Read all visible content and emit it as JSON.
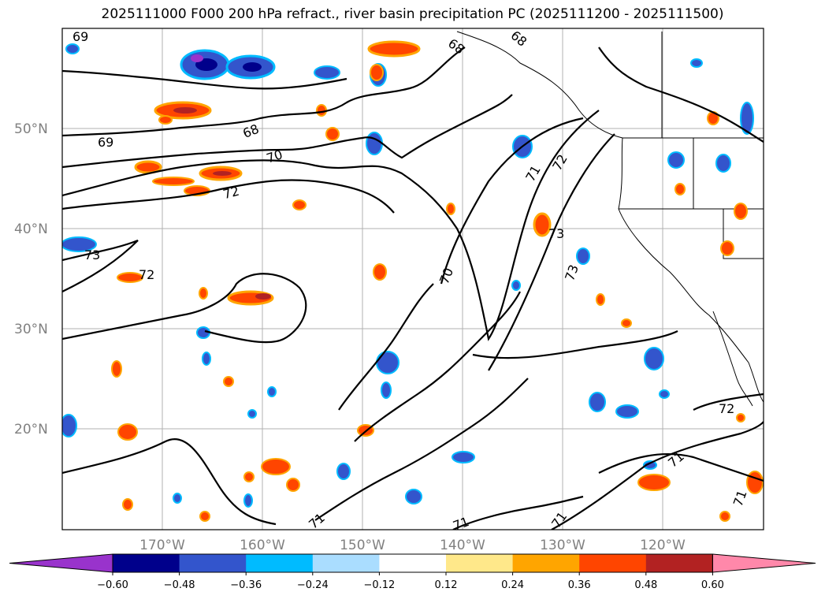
{
  "title": "2025111000 F000 200 hPa refract., river basin precipitation PC (2025111200 - 2025111500)",
  "map": {
    "lat_labels": [
      "50°N",
      "40°N",
      "30°N",
      "20°N"
    ],
    "lon_labels": [
      "170°W",
      "160°W",
      "150°W",
      "140°W",
      "130°W",
      "120°W"
    ],
    "contour_labels": [
      "69",
      "68",
      "68",
      "69",
      "68",
      "70",
      "72",
      "73",
      "72",
      "70",
      "71",
      "72",
      "73",
      "73",
      "72",
      "71",
      "71",
      "71",
      "71",
      "71"
    ]
  },
  "colorbar": {
    "colors": [
      "#9933cc",
      "#00008b",
      "#3355cc",
      "#00bbff",
      "#aaddff",
      "#ffffff",
      "#ffe88a",
      "#ffa500",
      "#ff4500",
      "#b22222",
      "#ff88aa"
    ],
    "tick_labels": [
      "−0.60",
      "−0.48",
      "−0.36",
      "−0.24",
      "−0.12",
      "0.12",
      "0.24",
      "0.36",
      "0.48",
      "0.60"
    ]
  }
}
